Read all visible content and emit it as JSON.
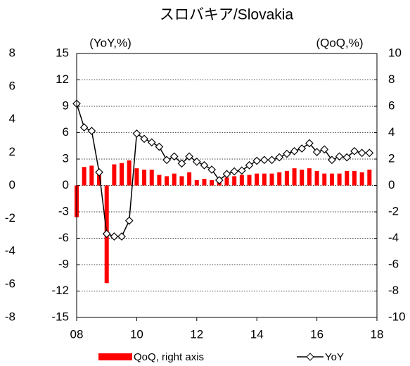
{
  "chart_data": {
    "type": "bar_line",
    "title": "スロバキア/Slovakia",
    "y_label": "(YoY,%)",
    "y2_label": "(QoQ,%)",
    "x": [
      2008,
      2008.25,
      2008.5,
      2008.75,
      2009,
      2009.25,
      2009.5,
      2009.75,
      2010,
      2010.25,
      2010.5,
      2010.75,
      2011,
      2011.25,
      2011.5,
      2011.75,
      2012,
      2012.25,
      2012.5,
      2012.75,
      2013,
      2013.25,
      2013.5,
      2013.75,
      2014,
      2014.25,
      2014.5,
      2014.75,
      2015,
      2015.25,
      2015.5,
      2015.75,
      2016,
      2016.25,
      2016.5,
      2016.75,
      2017,
      2017.25,
      2017.5,
      2017.75
    ],
    "xlim": [
      2008,
      2018
    ],
    "xticks": [
      {
        "value": 2008,
        "label": "08"
      },
      {
        "value": 2010,
        "label": "10"
      },
      {
        "value": 2012,
        "label": "12"
      },
      {
        "value": 2014,
        "label": "14"
      },
      {
        "value": 2016,
        "label": "16"
      },
      {
        "value": 2018,
        "label": "18"
      }
    ],
    "ylim": [
      -15,
      15
    ],
    "yticks": [
      -15,
      -12,
      -9,
      -6,
      -3,
      0,
      3,
      6,
      9,
      12,
      15
    ],
    "y2lim": [
      -10,
      10
    ],
    "y2ticks": [
      -10,
      -8,
      -6,
      -4,
      -2,
      0,
      2,
      4,
      6,
      8,
      10
    ],
    "y3lim": [
      -8,
      8
    ],
    "y3ticks": [
      -8,
      -6,
      -4,
      -2,
      0,
      2,
      4,
      6,
      8
    ],
    "grid": true,
    "series": [
      {
        "name": "QoQ, right axis",
        "kind": "bar",
        "axis": "y2",
        "color": "#ff0000",
        "values": [
          -2.4,
          1.4,
          1.5,
          1.1,
          -7.4,
          1.6,
          1.7,
          1.9,
          1.3,
          1.2,
          1.2,
          0.8,
          0.7,
          0.9,
          0.7,
          1.0,
          0.4,
          0.5,
          0.4,
          0.3,
          0.6,
          0.7,
          0.8,
          0.8,
          0.9,
          0.9,
          0.9,
          1.0,
          1.1,
          1.3,
          1.2,
          1.3,
          1.1,
          0.9,
          0.9,
          0.9,
          1.1,
          1.1,
          1.0,
          1.2
        ]
      },
      {
        "name": "YoY",
        "kind": "line",
        "axis": "y",
        "color": "#000000",
        "values": [
          9.3,
          6.6,
          6.2,
          1.5,
          -5.5,
          -5.8,
          -5.8,
          -4.0,
          5.9,
          5.3,
          4.9,
          4.4,
          2.9,
          3.3,
          2.5,
          3.3,
          2.7,
          2.3,
          1.8,
          0.6,
          1.3,
          1.6,
          1.7,
          2.3,
          2.8,
          2.9,
          2.9,
          3.2,
          3.6,
          3.9,
          4.2,
          4.8,
          3.8,
          4.1,
          2.9,
          3.3,
          3.2,
          3.9,
          3.7,
          3.7
        ]
      }
    ]
  }
}
